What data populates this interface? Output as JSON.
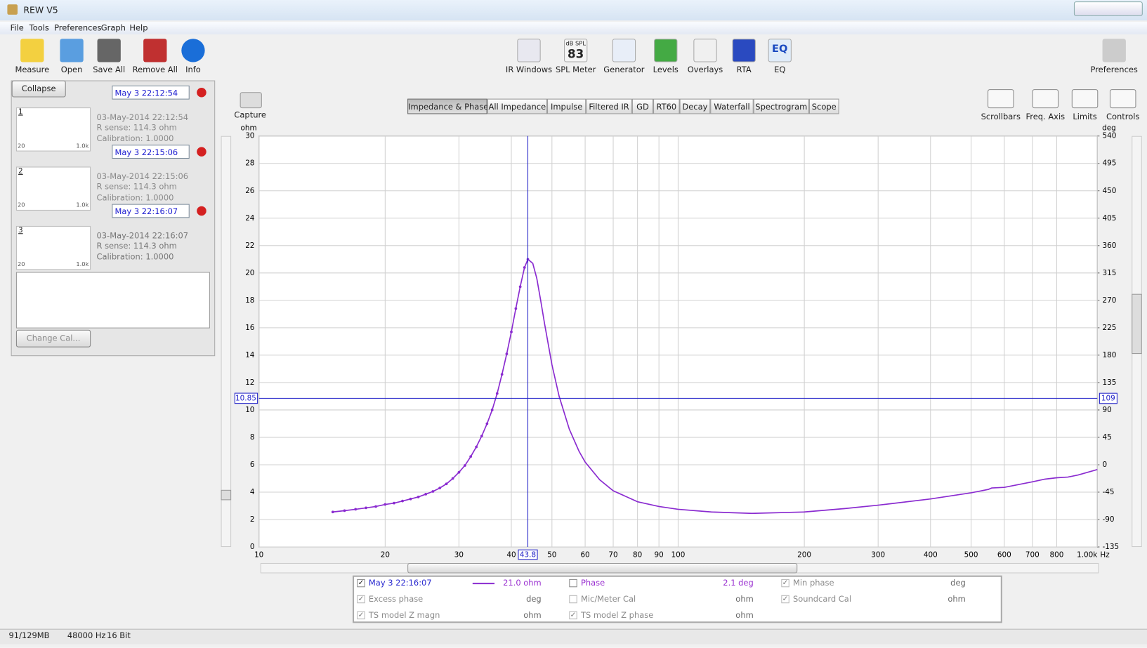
{
  "window": {
    "title": "REW V5"
  },
  "menu": [
    "File",
    "Tools",
    "Preferences",
    "Graph",
    "Help"
  ],
  "toolbar_left": [
    "Measure",
    "Open",
    "Save All",
    "Remove All",
    "Info"
  ],
  "toolbar_center": [
    "IR Windows",
    "SPL Meter",
    "Generator",
    "Levels",
    "Overlays",
    "RTA",
    "EQ"
  ],
  "spl_icon": {
    "unit": "dB SPL",
    "reading": "83"
  },
  "eq_icon": "EQ",
  "toolbar_right": [
    "Preferences"
  ],
  "panel": {
    "collapse": "Collapse",
    "measurements": [
      {
        "number": "1",
        "name": "May 3 22:12:54",
        "date": "03-May-2014 22:12:54",
        "r_sense": "R sense: 114.3 ohm",
        "calibration": "Calibration: 1.0000",
        "thumb_min": "20",
        "thumb_max": "1.0k",
        "color": "#1a9a8a"
      },
      {
        "number": "2",
        "name": "May 3 22:15:06",
        "date": "03-May-2014 22:15:06",
        "r_sense": "R sense: 114.3 ohm",
        "calibration": "Calibration: 1.0000",
        "thumb_min": "20",
        "thumb_max": "1.0k",
        "color": "#22b060"
      },
      {
        "number": "3",
        "name": "May 3 22:16:07",
        "date": "03-May-2014 22:16:07",
        "r_sense": "R sense: 114.3 ohm",
        "calibration": "Calibration: 1.0000",
        "thumb_min": "20",
        "thumb_max": "1.0k",
        "color": "#9933cc"
      }
    ],
    "change_cal": "Change Cal..."
  },
  "capture": "Capture",
  "tabs": [
    "Impedance & Phase",
    "All Impedance",
    "Impulse",
    "Filtered IR",
    "GD",
    "RT60",
    "Decay",
    "Waterfall",
    "Spectrogram",
    "Scope"
  ],
  "active_tab": 0,
  "graph_tools": [
    "Scrollbars",
    "Freq. Axis",
    "Limits",
    "Controls"
  ],
  "chart_data": {
    "type": "line",
    "y_label": "ohm",
    "y2_label": "deg",
    "x_unit": "Hz",
    "xscale": "log",
    "xlim": [
      10,
      1000
    ],
    "xticks": [
      10,
      20,
      30,
      40,
      50,
      60,
      70,
      80,
      90,
      100,
      200,
      300,
      400,
      500,
      600,
      700,
      800,
      {
        "value": 1000,
        "label": "1.00k"
      }
    ],
    "ylim": [
      0,
      30
    ],
    "yticks": [
      0,
      2,
      4,
      6,
      8,
      10,
      12,
      14,
      16,
      18,
      20,
      22,
      24,
      26,
      28,
      30
    ],
    "y2lim": [
      -135,
      540
    ],
    "y2ticks": [
      -135,
      -90,
      -45,
      0,
      45,
      90,
      135,
      180,
      225,
      270,
      315,
      360,
      405,
      450,
      495,
      540
    ],
    "grid": true,
    "series": [
      {
        "name": "May 3 22:16:07",
        "color": "#8a2bd0",
        "x": [
          15,
          16,
          17,
          18,
          19,
          20,
          21,
          22,
          23,
          24,
          25,
          26,
          27,
          28,
          29,
          30,
          31,
          32,
          33,
          34,
          35,
          36,
          37,
          38,
          39,
          40,
          41,
          42,
          43,
          43.8,
          45,
          46,
          47,
          48,
          50,
          52,
          55,
          58,
          60,
          65,
          70,
          80,
          90,
          100,
          120,
          150,
          200,
          250,
          300,
          400,
          500,
          550,
          560,
          600,
          700,
          750,
          800,
          850,
          900,
          1000
        ],
        "values": [
          2.55,
          2.65,
          2.75,
          2.85,
          2.95,
          3.1,
          3.2,
          3.35,
          3.5,
          3.65,
          3.85,
          4.05,
          4.3,
          4.6,
          5.0,
          5.45,
          5.95,
          6.6,
          7.3,
          8.1,
          9.0,
          10.0,
          11.2,
          12.6,
          14.1,
          15.7,
          17.4,
          19.0,
          20.4,
          21.0,
          20.7,
          19.6,
          18.0,
          16.3,
          13.3,
          11.0,
          8.6,
          7.0,
          6.2,
          4.9,
          4.1,
          3.3,
          2.95,
          2.75,
          2.55,
          2.45,
          2.55,
          2.8,
          3.05,
          3.5,
          3.95,
          4.2,
          4.3,
          4.35,
          4.75,
          4.95,
          5.05,
          5.1,
          5.25,
          5.65
        ]
      }
    ],
    "cursor": {
      "x": 43.8,
      "y": 10.85,
      "y2": 109,
      "color": "#2222c8"
    }
  },
  "legend": [
    [
      {
        "name": "May 3 22:16:07",
        "value": "21.0 ohm",
        "checked": true,
        "enabled": true,
        "line": true
      },
      {
        "name": "Phase",
        "value": "2.1 deg",
        "checked": false,
        "enabled": true
      },
      {
        "name": "Min phase",
        "value": "deg",
        "checked": true,
        "enabled": false
      }
    ],
    [
      {
        "name": "Excess phase",
        "value": "deg",
        "checked": true,
        "enabled": false
      },
      {
        "name": "Mic/Meter Cal",
        "value": "ohm",
        "checked": false,
        "enabled": false
      },
      {
        "name": "Soundcard Cal",
        "value": "ohm",
        "checked": true,
        "enabled": false
      }
    ],
    [
      {
        "name": "TS model Z magn",
        "value": "ohm",
        "checked": true,
        "enabled": false
      },
      {
        "name": "TS model Z phase",
        "value": "ohm",
        "checked": true,
        "enabled": false
      }
    ]
  ],
  "status": [
    "91/129MB",
    "48000 Hz",
    "16 Bit"
  ]
}
